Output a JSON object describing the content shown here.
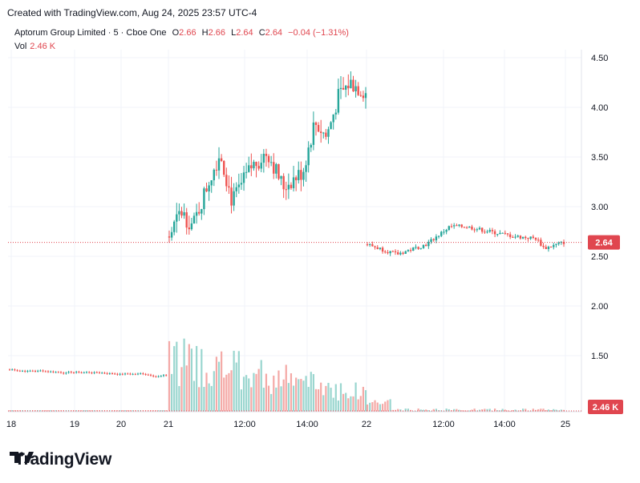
{
  "header": {
    "created_text": "Created with TradingView.com, Aug 24, 2025 23:57 UTC-4"
  },
  "legend": {
    "symbol": "Aptorum Group Limited · 5 · Cboe One",
    "open_label": "O",
    "open": "2.66",
    "high_label": "H",
    "high": "2.66",
    "low_label": "L",
    "low": "2.64",
    "close_label": "C",
    "close": "2.64",
    "change": "−0.04 (−1.31%)",
    "vol_label": "Vol",
    "vol": "2.46 K"
  },
  "badges": {
    "price": "2.64",
    "volume": "2.46 K"
  },
  "brand": {
    "name": "TradingView"
  },
  "colors": {
    "up": "#26a69a",
    "down": "#ef5350",
    "up_vol": "#9ad6cf",
    "down_vol": "#f4a9a6",
    "grid": "#f0f3fa",
    "price_line": "#e0464f"
  },
  "chart_data": {
    "type": "candlestick",
    "y_ticks": [
      "4.50",
      "4.00",
      "3.50",
      "3.00",
      "2.50",
      "2.00",
      "1.50"
    ],
    "ylim": [
      1.0,
      4.75
    ],
    "x_ticks": [
      "18",
      "19",
      "20",
      "21",
      "12:00",
      "14:00",
      "22",
      "12:00",
      "14:00",
      "25"
    ],
    "last_price": 2.64,
    "segments": [
      {
        "label": "18–20 (sparse)",
        "level": 1.36
      },
      {
        "label": "21 session",
        "anchors": [
          [
            0,
            2.7
          ],
          [
            0.06,
            2.95
          ],
          [
            0.12,
            2.8
          ],
          [
            0.2,
            3.25
          ],
          [
            0.26,
            3.55
          ],
          [
            0.32,
            3.05
          ],
          [
            0.42,
            3.4
          ],
          [
            0.5,
            3.55
          ],
          [
            0.58,
            3.2
          ],
          [
            0.68,
            3.35
          ],
          [
            0.74,
            3.85
          ],
          [
            0.8,
            3.7
          ],
          [
            0.86,
            4.1
          ],
          [
            0.92,
            4.25
          ],
          [
            1.0,
            4.15
          ]
        ]
      },
      {
        "label": "22 session",
        "anchors": [
          [
            0,
            2.62
          ],
          [
            0.15,
            2.52
          ],
          [
            0.3,
            2.62
          ],
          [
            0.42,
            2.8
          ],
          [
            0.5,
            2.8
          ],
          [
            0.62,
            2.75
          ],
          [
            0.75,
            2.7
          ],
          [
            0.86,
            2.68
          ],
          [
            0.9,
            2.58
          ],
          [
            1.0,
            2.64
          ]
        ]
      }
    ]
  }
}
